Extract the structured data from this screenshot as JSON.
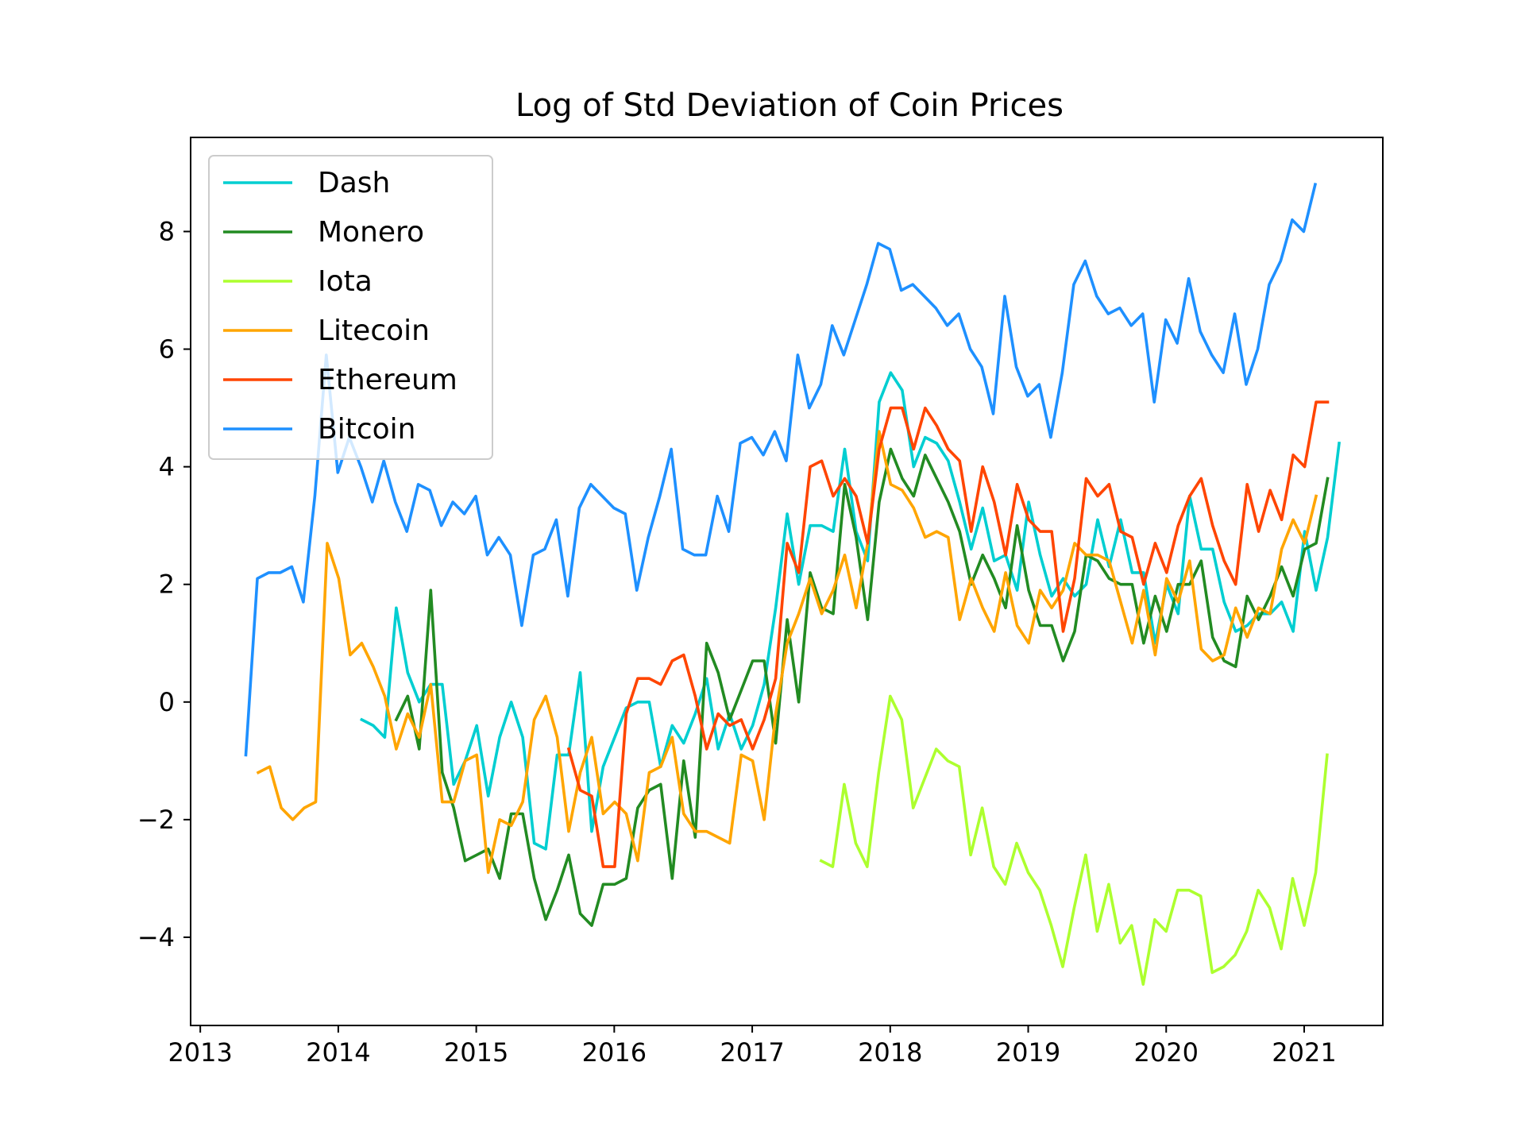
{
  "chart_data": {
    "type": "line",
    "title": "Log of Std Deviation of Coin Prices",
    "xlabel": "",
    "ylabel": "",
    "xlim": [
      2012.93,
      2021.57
    ],
    "ylim": [
      -5.5,
      9.6
    ],
    "x_ticks": [
      2013,
      2014,
      2015,
      2016,
      2017,
      2018,
      2019,
      2020,
      2021
    ],
    "x_tick_labels": [
      "2013",
      "2014",
      "2015",
      "2016",
      "2017",
      "2018",
      "2019",
      "2020",
      "2021"
    ],
    "y_ticks": [
      -4,
      -2,
      0,
      2,
      4,
      6,
      8
    ],
    "y_tick_labels": [
      "−4",
      "−2",
      "0",
      "2",
      "4",
      "6",
      "8"
    ],
    "grid": false,
    "legend_position": "upper-left",
    "series": [
      {
        "name": "Dash",
        "color": "#00CED1",
        "start": 2014.17,
        "values": [
          -0.3,
          -0.4,
          -0.6,
          1.6,
          0.5,
          0.0,
          0.3,
          0.3,
          -1.4,
          -1.0,
          -0.4,
          -1.6,
          -0.6,
          0.0,
          -0.6,
          -2.4,
          -2.5,
          -0.9,
          -0.9,
          0.5,
          -2.2,
          -1.1,
          -0.6,
          -0.1,
          0.0,
          0.0,
          -1.1,
          -0.4,
          -0.7,
          -0.2,
          0.4,
          -0.8,
          -0.2,
          -0.8,
          -0.4,
          0.3,
          1.6,
          3.2,
          2.0,
          3.0,
          3.0,
          2.9,
          4.3,
          2.9,
          2.4,
          5.1,
          5.6,
          5.3,
          4.0,
          4.5,
          4.4,
          4.1,
          3.4,
          2.6,
          3.3,
          2.4,
          2.5,
          1.9,
          3.4,
          2.5,
          1.8,
          2.1,
          1.8,
          2.0,
          3.1,
          2.3,
          3.1,
          2.2,
          2.2,
          1.0,
          2.0,
          1.5,
          3.5,
          2.6,
          2.6,
          1.7,
          1.2,
          1.3,
          1.5,
          1.5,
          1.7,
          1.2,
          2.9,
          1.9,
          2.8,
          4.4
        ]
      },
      {
        "name": "Monero",
        "color": "#228B22",
        "start": 2014.42,
        "values": [
          -0.3,
          0.1,
          -0.8,
          1.9,
          -1.2,
          -1.8,
          -2.7,
          -2.6,
          -2.5,
          -3.0,
          -1.9,
          -1.9,
          -3.0,
          -3.7,
          -3.2,
          -2.6,
          -3.6,
          -3.8,
          -3.1,
          -3.1,
          -3.0,
          -1.8,
          -1.5,
          -1.4,
          -3.0,
          -1.0,
          -2.3,
          1.0,
          0.5,
          -0.3,
          0.2,
          0.7,
          0.7,
          -0.7,
          1.4,
          0.0,
          2.2,
          1.6,
          1.5,
          3.7,
          2.8,
          1.4,
          3.4,
          4.3,
          3.8,
          3.5,
          4.2,
          3.8,
          3.4,
          2.9,
          2.0,
          2.5,
          2.1,
          1.6,
          3.0,
          1.9,
          1.3,
          1.3,
          0.7,
          1.2,
          2.5,
          2.4,
          2.1,
          2.0,
          2.0,
          1.0,
          1.8,
          1.2,
          2.0,
          2.0,
          2.4,
          1.1,
          0.7,
          0.6,
          1.8,
          1.4,
          1.8,
          2.3,
          1.8,
          2.6,
          2.7,
          3.8
        ]
      },
      {
        "name": "Iota",
        "color": "#ADFF2F",
        "start": 2017.5,
        "values": [
          -2.7,
          -2.8,
          -1.4,
          -2.4,
          -2.8,
          -1.2,
          0.1,
          -0.3,
          -1.8,
          -1.3,
          -0.8,
          -1.0,
          -1.1,
          -2.6,
          -1.8,
          -2.8,
          -3.1,
          -2.4,
          -2.9,
          -3.2,
          -3.8,
          -4.5,
          -3.5,
          -2.6,
          -3.9,
          -3.1,
          -4.1,
          -3.8,
          -4.8,
          -3.7,
          -3.9,
          -3.2,
          -3.2,
          -3.3,
          -4.6,
          -4.5,
          -4.3,
          -3.9,
          -3.2,
          -3.5,
          -4.2,
          -3.0,
          -3.8,
          -2.9,
          -0.9
        ]
      },
      {
        "name": "Litecoin",
        "color": "#FFA500",
        "start": 2013.42,
        "values": [
          -1.2,
          -1.1,
          -1.8,
          -2.0,
          -1.8,
          -1.7,
          2.7,
          2.1,
          0.8,
          1.0,
          0.6,
          0.1,
          -0.8,
          -0.2,
          -0.6,
          0.3,
          -1.7,
          -1.7,
          -1.0,
          -0.9,
          -2.9,
          -2.0,
          -2.1,
          -1.7,
          -0.3,
          0.1,
          -0.6,
          -2.2,
          -1.2,
          -0.6,
          -1.9,
          -1.7,
          -1.9,
          -2.7,
          -1.2,
          -1.1,
          -0.6,
          -1.9,
          -2.2,
          -2.2,
          -2.3,
          -2.4,
          -0.9,
          -1.0,
          -2.0,
          -0.2,
          1.0,
          1.5,
          2.1,
          1.5,
          1.9,
          2.5,
          1.6,
          2.7,
          4.6,
          3.7,
          3.6,
          3.3,
          2.8,
          2.9,
          2.8,
          1.4,
          2.1,
          1.6,
          1.2,
          2.2,
          1.3,
          1.0,
          1.9,
          1.6,
          1.9,
          2.7,
          2.5,
          2.5,
          2.4,
          1.7,
          1.0,
          1.9,
          0.8,
          2.1,
          1.7,
          2.4,
          0.9,
          0.7,
          0.8,
          1.6,
          1.1,
          1.6,
          1.5,
          2.6,
          3.1,
          2.7,
          3.5
        ]
      },
      {
        "name": "Ethereum",
        "color": "#FF4500",
        "start": 2015.67,
        "values": [
          -0.8,
          -1.5,
          -1.6,
          -2.8,
          -2.8,
          -0.2,
          0.4,
          0.4,
          0.3,
          0.7,
          0.8,
          0.1,
          -0.8,
          -0.2,
          -0.4,
          -0.3,
          -0.8,
          -0.3,
          0.4,
          2.7,
          2.2,
          4.0,
          4.1,
          3.5,
          3.8,
          3.5,
          2.7,
          4.3,
          5.0,
          5.0,
          4.3,
          5.0,
          4.7,
          4.3,
          4.1,
          2.9,
          4.0,
          3.4,
          2.5,
          3.7,
          3.1,
          2.9,
          2.9,
          1.2,
          2.1,
          3.8,
          3.5,
          3.7,
          2.9,
          2.8,
          2.0,
          2.7,
          2.2,
          3.0,
          3.5,
          3.8,
          3.0,
          2.4,
          2.0,
          3.7,
          2.9,
          3.6,
          3.1,
          4.2,
          4.0,
          5.1,
          5.1
        ]
      },
      {
        "name": "Bitcoin",
        "color": "#1E90FF",
        "start": 2013.33,
        "values": [
          -0.9,
          2.1,
          2.2,
          2.2,
          2.3,
          1.7,
          3.5,
          5.9,
          3.9,
          4.5,
          4.0,
          3.4,
          4.1,
          3.4,
          2.9,
          3.7,
          3.6,
          3.0,
          3.4,
          3.2,
          3.5,
          2.5,
          2.8,
          2.5,
          1.3,
          2.5,
          2.6,
          3.1,
          1.8,
          3.3,
          3.7,
          3.5,
          3.3,
          3.2,
          1.9,
          2.8,
          3.5,
          4.3,
          2.6,
          2.5,
          2.5,
          3.5,
          2.9,
          4.4,
          4.5,
          4.2,
          4.6,
          4.1,
          5.9,
          5.0,
          5.4,
          6.4,
          5.9,
          6.5,
          7.1,
          7.8,
          7.7,
          7.0,
          7.1,
          6.9,
          6.7,
          6.4,
          6.6,
          6.0,
          5.7,
          4.9,
          6.9,
          5.7,
          5.2,
          5.4,
          4.5,
          5.6,
          7.1,
          7.5,
          6.9,
          6.6,
          6.7,
          6.4,
          6.6,
          5.1,
          6.5,
          6.1,
          7.2,
          6.3,
          5.9,
          5.6,
          6.6,
          5.4,
          6.0,
          7.1,
          7.5,
          8.2,
          8.0,
          8.8
        ]
      }
    ]
  }
}
